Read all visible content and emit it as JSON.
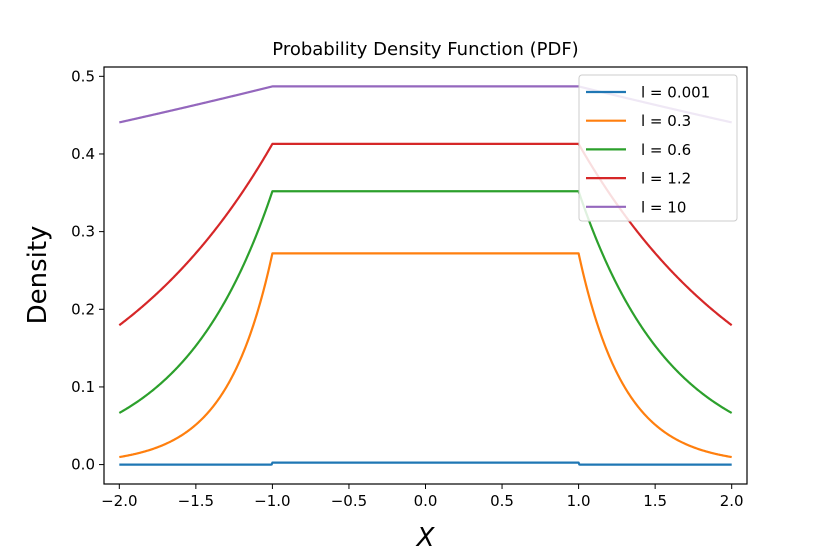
{
  "chart_data": {
    "type": "line",
    "title": "Probability Density Function (PDF)",
    "xlabel": "X",
    "ylabel": "Density",
    "xlim": [
      -2.1,
      2.1
    ],
    "ylim": [
      -0.025,
      0.512
    ],
    "x_ticks": [
      -2.0,
      -1.5,
      -1.0,
      -0.5,
      0.0,
      0.5,
      1.0,
      1.5,
      2.0
    ],
    "x_tick_labels": [
      "−2.0",
      "−1.5",
      "−1.0",
      "−0.5",
      "0.0",
      "0.5",
      "1.0",
      "1.5",
      "2.0"
    ],
    "y_ticks": [
      0.0,
      0.1,
      0.2,
      0.3,
      0.4,
      0.5
    ],
    "y_tick_labels": [
      "0.0",
      "0.1",
      "0.2",
      "0.3",
      "0.4",
      "0.5"
    ],
    "grid": false,
    "legend_position": "top-right",
    "x_range": [
      -2.0,
      2.0
    ],
    "series": [
      {
        "name": "l = 0.001",
        "l": 0.001,
        "color": "#1f77b4",
        "plateau": 0.0025
      },
      {
        "name": "l = 0.3",
        "l": 0.3,
        "color": "#ff7f0e",
        "plateau": 0.272
      },
      {
        "name": "l = 0.6",
        "l": 0.6,
        "color": "#2ca02c",
        "plateau": 0.352
      },
      {
        "name": "l = 1.2",
        "l": 1.2,
        "color": "#d62728",
        "plateau": 0.413
      },
      {
        "name": "l = 10",
        "l": 10,
        "color": "#9467bd",
        "plateau": 0.487
      }
    ]
  }
}
